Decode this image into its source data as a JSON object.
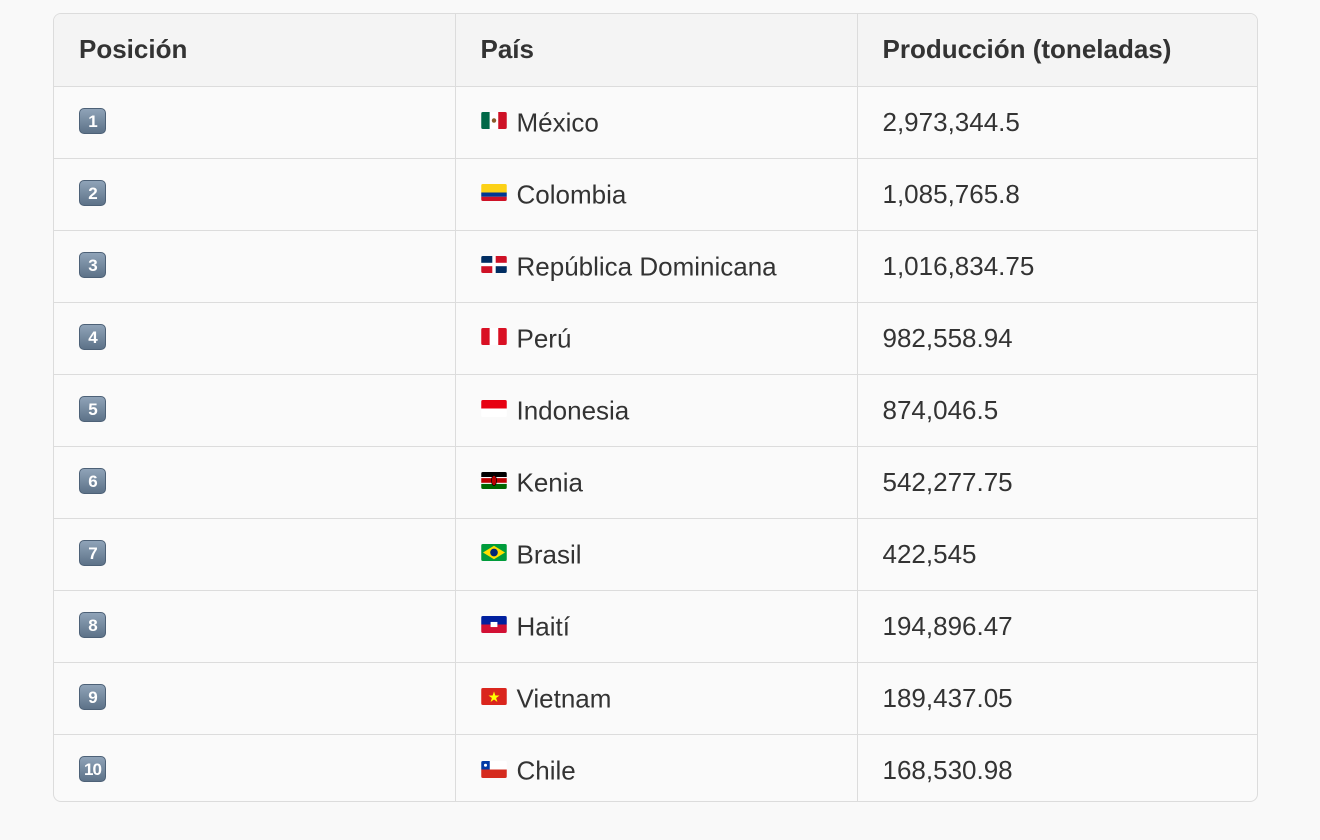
{
  "table": {
    "headers": [
      "Posición",
      "País",
      "Producción (toneladas)"
    ],
    "rows": [
      {
        "position": "1",
        "flag": "mexico-flag-icon",
        "country": "México",
        "production": "2,973,344.5"
      },
      {
        "position": "2",
        "flag": "colombia-flag-icon",
        "country": "Colombia",
        "production": "1,085,765.8"
      },
      {
        "position": "3",
        "flag": "dominican-republic-flag-icon",
        "country": "República Dominicana",
        "production": "1,016,834.75"
      },
      {
        "position": "4",
        "flag": "peru-flag-icon",
        "country": "Perú",
        "production": "982,558.94"
      },
      {
        "position": "5",
        "flag": "indonesia-flag-icon",
        "country": "Indonesia",
        "production": "874,046.5"
      },
      {
        "position": "6",
        "flag": "kenya-flag-icon",
        "country": "Kenia",
        "production": "542,277.75"
      },
      {
        "position": "7",
        "flag": "brazil-flag-icon",
        "country": "Brasil",
        "production": "422,545"
      },
      {
        "position": "8",
        "flag": "haiti-flag-icon",
        "country": "Haití",
        "production": "194,896.47"
      },
      {
        "position": "9",
        "flag": "vietnam-flag-icon",
        "country": "Vietnam",
        "production": "189,437.05"
      },
      {
        "position": "10",
        "flag": "chile-flag-icon",
        "country": "Chile",
        "production": "168,530.98"
      }
    ]
  }
}
